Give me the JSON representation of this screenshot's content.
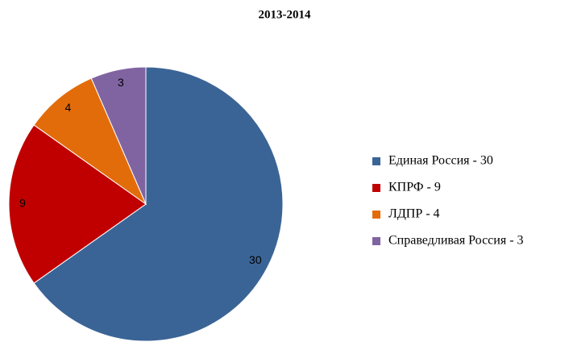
{
  "chart_data": {
    "type": "pie",
    "title": "2013-2014",
    "categories": [
      "Единая Россия - 30",
      "КПРФ - 9",
      "ЛДПР - 4",
      "Справедливая Россия - 3"
    ],
    "values": [
      30,
      9,
      4,
      3
    ],
    "colors": [
      "#3b6496",
      "#c00000",
      "#e36c0a",
      "#8064a2"
    ],
    "legend": "right"
  }
}
